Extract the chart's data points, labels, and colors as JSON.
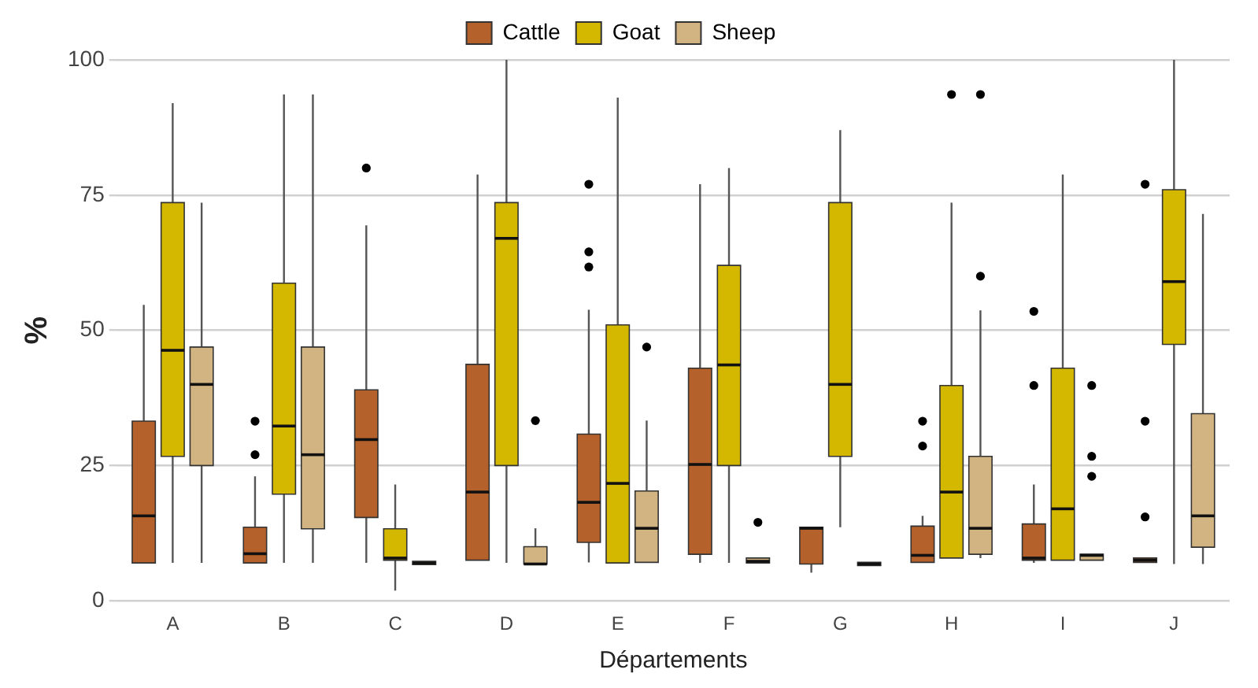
{
  "chart_data": {
    "type": "box",
    "xlabel": "Départements",
    "ylabel": "%",
    "categories": [
      "A",
      "B",
      "C",
      "D",
      "E",
      "F",
      "G",
      "H",
      "I",
      "J"
    ],
    "ylim": [
      0,
      100
    ],
    "yticks": [
      0,
      25,
      50,
      75,
      100
    ],
    "grid": "y",
    "legend": "top",
    "series": [
      {
        "name": "Cattle",
        "color": "#b5612b",
        "boxes": [
          {
            "low": 7,
            "q1": 7,
            "median": 15.7,
            "q3": 33.2,
            "high": 54.7
          },
          {
            "low": 7,
            "q1": 7,
            "median": 8.7,
            "q3": 13.6,
            "high": 23,
            "outliers": [
              27,
              33.2
            ]
          },
          {
            "low": 7,
            "q1": 15.4,
            "median": 29.8,
            "q3": 39,
            "high": 69.4,
            "outliers": [
              80
            ]
          },
          {
            "low": 7.5,
            "q1": 7.5,
            "median": 20.1,
            "q3": 43.7,
            "high": 78.8
          },
          {
            "low": 7.1,
            "q1": 10.8,
            "median": 18.2,
            "q3": 30.8,
            "high": 53.8,
            "outliers": [
              61.7,
              64.5,
              77
            ]
          },
          {
            "low": 7,
            "q1": 8.6,
            "median": 25.2,
            "q3": 43,
            "high": 77
          },
          {
            "low": 5.2,
            "q1": 6.8,
            "median": 13.4,
            "q3": 13.6,
            "high": 13.6
          },
          {
            "low": 7.1,
            "q1": 7.1,
            "median": 8.4,
            "q3": 13.8,
            "high": 15.7,
            "outliers": [
              28.6,
              33.2
            ]
          },
          {
            "low": 7,
            "q1": 7.5,
            "median": 7.9,
            "q3": 14.2,
            "high": 21.5,
            "outliers": [
              39.8,
              53.5
            ]
          },
          {
            "low": 7.1,
            "q1": 7.1,
            "median": 7.5,
            "q3": 7.9,
            "high": 7.9,
            "outliers": [
              15.5,
              33.2,
              77
            ]
          }
        ]
      },
      {
        "name": "Goat",
        "color": "#d4b800",
        "boxes": [
          {
            "low": 7,
            "q1": 26.7,
            "median": 46.3,
            "q3": 73.6,
            "high": 92
          },
          {
            "low": 7,
            "q1": 19.7,
            "median": 32.3,
            "q3": 58.7,
            "high": 93.6
          },
          {
            "low": 1.9,
            "q1": 7.5,
            "median": 7.9,
            "q3": 13.3,
            "high": 21.5
          },
          {
            "low": 7,
            "q1": 25,
            "median": 67,
            "q3": 73.6,
            "high": 100
          },
          {
            "low": 7,
            "q1": 7,
            "median": 21.7,
            "q3": 51,
            "high": 93
          },
          {
            "low": 7,
            "q1": 25,
            "median": 43.6,
            "q3": 62,
            "high": 80
          },
          {
            "low": 13.6,
            "q1": 26.7,
            "median": 40,
            "q3": 73.6,
            "high": 87
          },
          {
            "low": 7.9,
            "q1": 7.9,
            "median": 20.1,
            "q3": 39.8,
            "high": 73.6,
            "outliers": [
              93.6
            ]
          },
          {
            "low": 7.5,
            "q1": 7.5,
            "median": 17,
            "q3": 43,
            "high": 78.8
          },
          {
            "low": 6.8,
            "q1": 47.4,
            "median": 59,
            "q3": 76,
            "high": 100
          }
        ]
      },
      {
        "name": "Sheep",
        "color": "#d2b482",
        "boxes": [
          {
            "low": 7,
            "q1": 25,
            "median": 40,
            "q3": 46.9,
            "high": 73.6
          },
          {
            "low": 7,
            "q1": 13.3,
            "median": 27,
            "q3": 46.9,
            "high": 93.6
          },
          {
            "low": 6.7,
            "q1": 6.7,
            "median": 7,
            "q3": 7.3,
            "high": 7.3
          },
          {
            "low": 6.8,
            "q1": 6.8,
            "median": 6.8,
            "q3": 10,
            "high": 13.4,
            "outliers": [
              33.3
            ]
          },
          {
            "low": 7,
            "q1": 7.1,
            "median": 13.4,
            "q3": 20.3,
            "high": 33.3,
            "outliers": [
              46.9
            ]
          },
          {
            "low": 7,
            "q1": 7,
            "median": 7.3,
            "q3": 7.9,
            "high": 7.9,
            "outliers": [
              14.5
            ]
          },
          {
            "low": 6.5,
            "q1": 6.5,
            "median": 6.8,
            "q3": 7.1,
            "high": 7.1
          },
          {
            "low": 7.9,
            "q1": 8.6,
            "median": 13.4,
            "q3": 26.7,
            "high": 53.7,
            "outliers": [
              60,
              93.6
            ]
          },
          {
            "low": 7.5,
            "q1": 7.5,
            "median": 8.4,
            "q3": 8.6,
            "high": 8.6,
            "outliers": [
              23,
              26.7,
              39.8
            ]
          },
          {
            "low": 6.8,
            "q1": 9.9,
            "median": 15.7,
            "q3": 34.6,
            "high": 71.5
          }
        ]
      }
    ]
  }
}
